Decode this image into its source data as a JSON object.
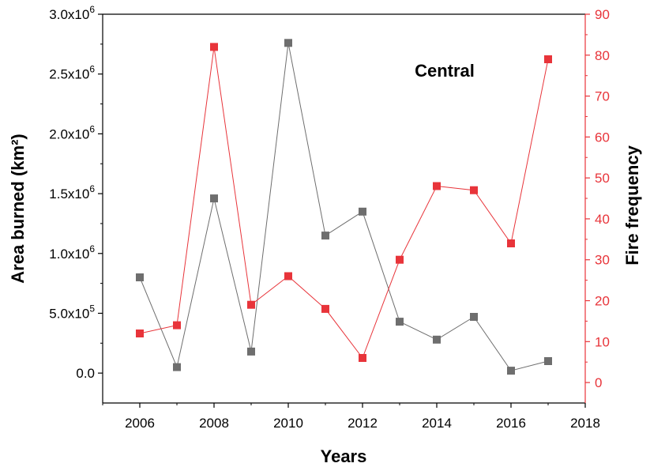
{
  "chart_data": {
    "type": "line",
    "title": "Central",
    "xlabel": "Years",
    "ylabel_left": "Area burned (km²)",
    "ylabel_right": "Fire frequency",
    "xlim": [
      2005,
      2018
    ],
    "x_ticks": [
      2006,
      2008,
      2010,
      2012,
      2014,
      2016,
      2018
    ],
    "ylim_left": [
      -250000,
      3000000
    ],
    "ylim_right": [
      -5,
      90
    ],
    "y_left_ticks": [
      {
        "value": 3000000,
        "mantissa": "3.0x10",
        "exp": "6"
      },
      {
        "value": 2500000,
        "mantissa": "2.5x10",
        "exp": "6"
      },
      {
        "value": 2000000,
        "mantissa": "2.0x10",
        "exp": "6"
      },
      {
        "value": 1500000,
        "mantissa": "1.5x10",
        "exp": "6"
      },
      {
        "value": 1000000,
        "mantissa": "1.0x10",
        "exp": "6"
      },
      {
        "value": 500000,
        "mantissa": "5.0x10",
        "exp": "5"
      },
      {
        "value": 0,
        "mantissa": "0.0",
        "exp": ""
      }
    ],
    "y_right_ticks": [
      0,
      10,
      20,
      30,
      40,
      50,
      60,
      70,
      80,
      90
    ],
    "x": [
      2006,
      2007,
      2008,
      2009,
      2010,
      2011,
      2012,
      2013,
      2014,
      2015,
      2016,
      2017
    ],
    "series": [
      {
        "axis": "left",
        "color": "#6e6e6e",
        "values": [
          800000,
          50000,
          1460000,
          180000,
          2760000,
          1150000,
          1350000,
          430000,
          280000,
          470000,
          20000,
          100000
        ]
      },
      {
        "axis": "right",
        "color": "#e8343a",
        "values": [
          12,
          14,
          82,
          19,
          26,
          18,
          6,
          30,
          48,
          47,
          34,
          79
        ]
      }
    ],
    "colors": {
      "left_axis": "#000000",
      "right_axis": "#e8343a"
    }
  }
}
